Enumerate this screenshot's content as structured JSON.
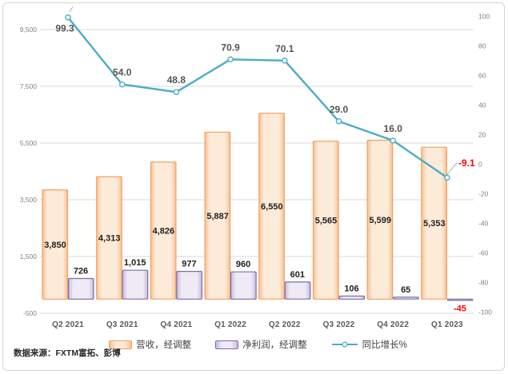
{
  "source_note": "数据来源：FXTM富拓、彭博",
  "chart_data": {
    "type": "combo-bar-line",
    "title": "",
    "categories": [
      "Q2 2021",
      "Q3 2021",
      "Q4 2021",
      "Q1 2022",
      "Q2 2022",
      "Q3 2022",
      "Q4 2022",
      "Q1 2023"
    ],
    "series": [
      {
        "name": "营收，经调整",
        "type": "bar",
        "axis": "left",
        "values": [
          3850,
          4313,
          4826,
          5887,
          6550,
          5565,
          5599,
          5353
        ],
        "labels": [
          "3,850",
          "4,313",
          "4,826",
          "5,887",
          "6,550",
          "5,565",
          "5,599",
          "5,353"
        ],
        "border": "#f1a15f",
        "fill_edge": "#f8c193",
        "fill_center": "#fdebd9"
      },
      {
        "name": "净利润，经调整",
        "type": "bar",
        "axis": "left",
        "values": [
          726,
          1015,
          977,
          960,
          601,
          106,
          65,
          -45
        ],
        "labels": [
          "726",
          "1,015",
          "977",
          "960",
          "601",
          "106",
          "65",
          "-45"
        ],
        "border": "#7e6da5",
        "fill_edge": "#c7bbdc",
        "fill_center": "#efebf6"
      },
      {
        "name": "同比增长%",
        "type": "line",
        "axis": "right",
        "values": [
          99.3,
          54.0,
          48.8,
          70.9,
          70.1,
          29.0,
          16.0,
          -9.1
        ],
        "labels": [
          "99.3",
          "54.0",
          "48.8",
          "70.9",
          "70.1",
          "29.0",
          "16.0",
          "-9.1"
        ],
        "color": "#4bacc6",
        "marker_fill": "#f2fafc"
      }
    ],
    "left_axis": {
      "min": -500,
      "max": 9500,
      "tick_values": [
        9500,
        7500,
        5500,
        3500,
        1500,
        -500
      ],
      "tick_labels": [
        "9,500",
        "7,500",
        "5,500",
        "3,500",
        "1,500",
        "-500"
      ]
    },
    "right_axis": {
      "min": -100,
      "max": 100,
      "tick_values": [
        100,
        80,
        60,
        40,
        20,
        0,
        -20,
        -40,
        -60,
        -80,
        -100
      ],
      "tick_labels": [
        "100",
        "80",
        "60",
        "40",
        "20",
        "0",
        "-20",
        "-40",
        "-60",
        "-80",
        "-100"
      ]
    },
    "grid": "horizontal-only",
    "grid_color": "#d9d9d9",
    "negative_label_color": "#ff0000",
    "legend_position": "bottom"
  }
}
